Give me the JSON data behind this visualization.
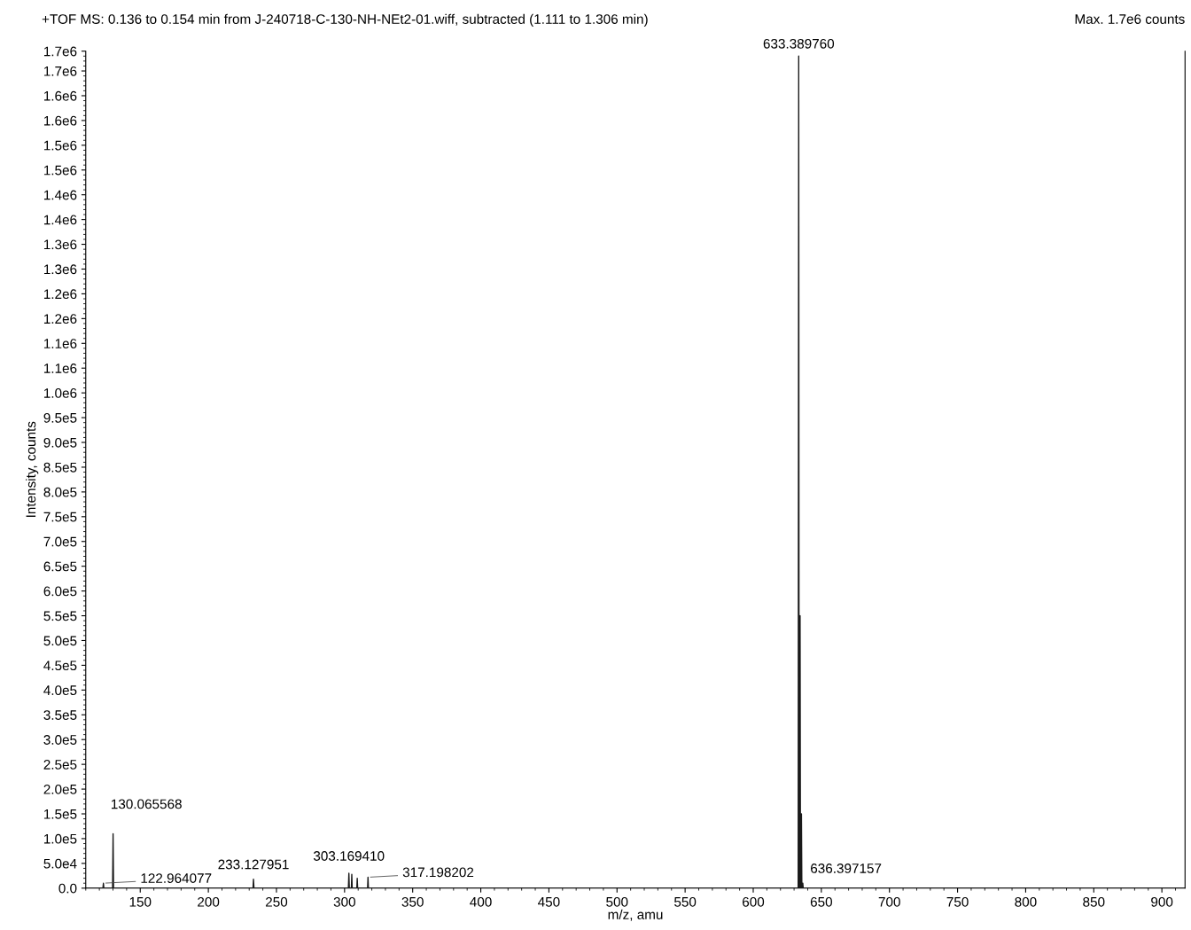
{
  "chart_data": {
    "type": "line",
    "title": "+TOF MS: 0.136 to 0.154 min from J-240718-C-130-NH-NEt2-01.wiff, subtracted (1.111 to 1.306 min)",
    "xlabel": "m/z, amu",
    "ylabel": "Intensity, counts",
    "series": [
      {
        "color": "#1a1a1a",
        "x": [
          110,
          122.6,
          122.964077,
          123.3,
          129.7,
          130.065568,
          130.4,
          232.8,
          233.127951,
          233.5,
          302.8,
          303.16941,
          303.5,
          305.0,
          305.3,
          305.6,
          309.0,
          309.3,
          309.6,
          316.9,
          317.198202,
          317.5,
          633.0,
          633.38976,
          633.7,
          634.0,
          634.39,
          634.7,
          635.0,
          635.39,
          635.7,
          636.0,
          636.397157,
          636.7,
          917
        ],
        "values": [
          0,
          0,
          10000,
          0,
          0,
          110000,
          0,
          0,
          18000,
          0,
          0,
          30000,
          0,
          0,
          28000,
          0,
          0,
          20000,
          0,
          0,
          22000,
          0,
          0,
          1680000,
          0,
          0,
          550000,
          0,
          0,
          150000,
          0,
          0,
          10000,
          0,
          0
        ]
      }
    ],
    "xlim": [
      110,
      917
    ],
    "xticks": [
      150,
      200,
      250,
      300,
      350,
      400,
      450,
      500,
      550,
      600,
      650,
      700,
      750,
      800,
      850,
      900
    ],
    "ylim": [
      0,
      1690000
    ],
    "yticks": [
      {
        "value": 0,
        "label": "0.0"
      },
      {
        "value": 50000,
        "label": "5.0e4"
      },
      {
        "value": 100000,
        "label": "1.0e5"
      },
      {
        "value": 150000,
        "label": "1.5e5"
      },
      {
        "value": 200000,
        "label": "2.0e5"
      },
      {
        "value": 250000,
        "label": "2.5e5"
      },
      {
        "value": 300000,
        "label": "3.0e5"
      },
      {
        "value": 350000,
        "label": "3.5e5"
      },
      {
        "value": 400000,
        "label": "4.0e5"
      },
      {
        "value": 450000,
        "label": "4.5e5"
      },
      {
        "value": 500000,
        "label": "5.0e5"
      },
      {
        "value": 550000,
        "label": "5.5e5"
      },
      {
        "value": 600000,
        "label": "6.0e5"
      },
      {
        "value": 650000,
        "label": "6.5e5"
      },
      {
        "value": 700000,
        "label": "7.0e5"
      },
      {
        "value": 750000,
        "label": "7.5e5"
      },
      {
        "value": 800000,
        "label": "8.0e5"
      },
      {
        "value": 850000,
        "label": "8.5e5"
      },
      {
        "value": 900000,
        "label": "9.0e5"
      },
      {
        "value": 950000,
        "label": "9.5e5"
      },
      {
        "value": 1000000,
        "label": "1.0e6"
      },
      {
        "value": 1050000,
        "label": "1.1e6"
      },
      {
        "value": 1100000,
        "label": "1.1e6"
      },
      {
        "value": 1150000,
        "label": "1.2e6"
      },
      {
        "value": 1200000,
        "label": "1.2e6"
      },
      {
        "value": 1250000,
        "label": "1.3e6"
      },
      {
        "value": 1300000,
        "label": "1.3e6"
      },
      {
        "value": 1350000,
        "label": "1.4e6"
      },
      {
        "value": 1400000,
        "label": "1.4e6"
      },
      {
        "value": 1450000,
        "label": "1.5e6"
      },
      {
        "value": 1500000,
        "label": "1.5e6"
      },
      {
        "value": 1550000,
        "label": "1.6e6"
      },
      {
        "value": 1600000,
        "label": "1.6e6"
      },
      {
        "value": 1650000,
        "label": "1.7e6"
      },
      {
        "value": 1690000,
        "label": "1.7e6"
      }
    ],
    "annotations": [
      "Max. 1.7e6 counts",
      {
        "text": "633.389760",
        "x": 633.38976,
        "y": 1680000
      },
      {
        "text": "130.065568",
        "x": 130.065568,
        "y": 110000
      },
      {
        "text": "122.964077",
        "x": 122.964077,
        "y": 10000
      },
      {
        "text": "233.127951",
        "x": 233.127951,
        "y": 18000
      },
      {
        "text": "303.169410",
        "x": 303.16941,
        "y": 30000
      },
      {
        "text": "317.198202",
        "x": 317.198202,
        "y": 22000
      },
      {
        "text": "636.397157",
        "x": 636.397157,
        "y": 10000
      }
    ],
    "grid": false,
    "legend": false,
    "marker": "none",
    "line_style": "solid"
  }
}
